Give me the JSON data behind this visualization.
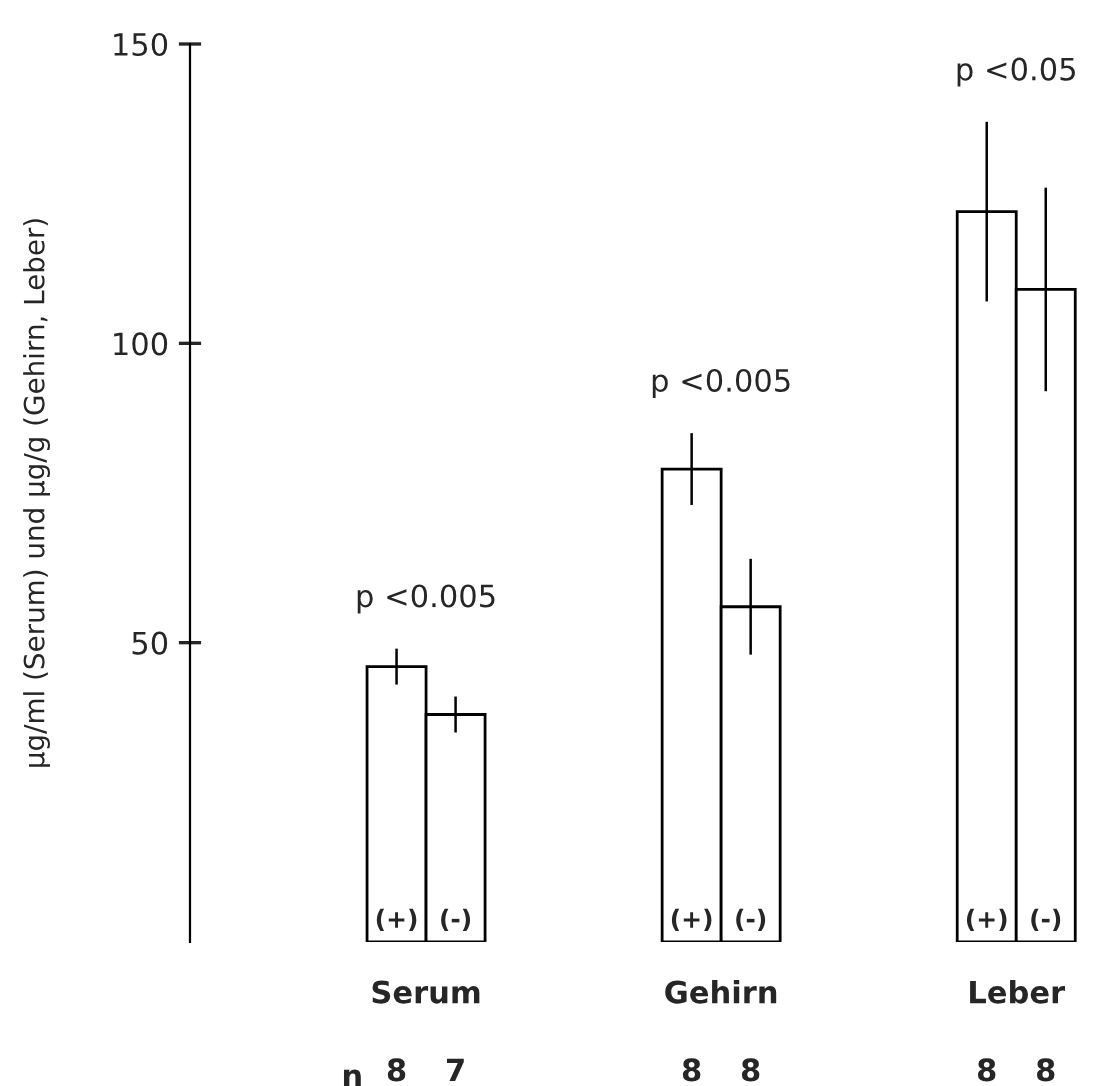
{
  "chart_data": {
    "type": "bar",
    "ylabel": "µg/ml (Serum) und µg/g (Gehirn, Leber)",
    "categories": [
      "Serum",
      "Gehirn",
      "Leber"
    ],
    "series": [
      {
        "name": "(+)",
        "color": "#ffffff",
        "values": [
          46,
          79,
          122
        ],
        "errors": [
          3,
          6,
          15
        ]
      },
      {
        "name": "(-)",
        "color": "#ffffff",
        "values": [
          38,
          56,
          109
        ],
        "errors": [
          3,
          8,
          17
        ]
      }
    ],
    "ylim": [
      0,
      150
    ],
    "yticks": [
      50,
      100,
      150
    ],
    "annotations": [
      "p <0.005",
      "p <0.005",
      "p <0.05",
      "n",
      "8",
      "7",
      "8",
      "8",
      "8",
      "8"
    ],
    "grid": false,
    "legend": false
  }
}
